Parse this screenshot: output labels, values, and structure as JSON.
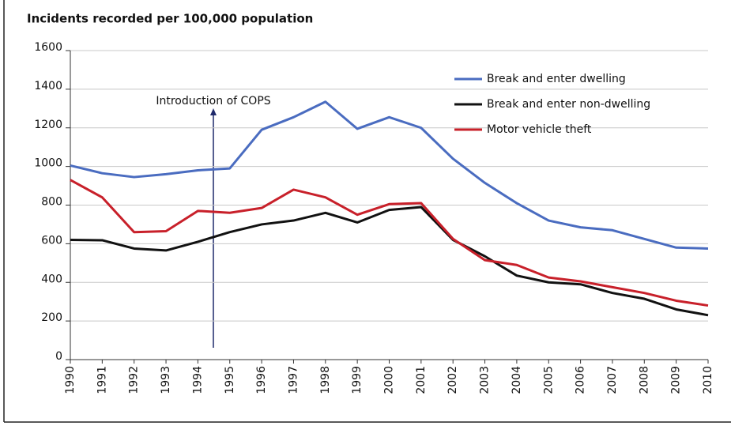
{
  "chart_data": {
    "type": "line",
    "title": "Incidents recorded per 100,000 population",
    "categories": [
      "1990",
      "1991",
      "1992",
      "1993",
      "1994",
      "1995",
      "1996",
      "1997",
      "1998",
      "1999",
      "2000",
      "2001",
      "2002",
      "2003",
      "2004",
      "2005",
      "2006",
      "2007",
      "2008",
      "2009",
      "2010"
    ],
    "series": [
      {
        "name": "Break and enter dwelling",
        "color": "#4a6cc0",
        "values": [
          1005,
          965,
          945,
          960,
          980,
          990,
          1190,
          1255,
          1335,
          1195,
          1255,
          1200,
          1040,
          915,
          810,
          720,
          685,
          670,
          625,
          580,
          575
        ]
      },
      {
        "name": "Break and enter non-dwelling",
        "color": "#111111",
        "values": [
          620,
          618,
          575,
          565,
          610,
          660,
          700,
          720,
          760,
          710,
          775,
          790,
          620,
          535,
          435,
          400,
          390,
          345,
          315,
          260,
          230
        ]
      },
      {
        "name": "Motor vehicle theft",
        "color": "#c8202a",
        "values": [
          930,
          840,
          660,
          665,
          770,
          760,
          785,
          880,
          840,
          750,
          805,
          810,
          625,
          515,
          490,
          425,
          405,
          375,
          345,
          305,
          280
        ]
      }
    ],
    "annotation": "Introduction of COPS",
    "ylim": [
      0,
      1600
    ],
    "yticks": [
      0,
      200,
      400,
      600,
      800,
      1000,
      1200,
      1400,
      1600
    ],
    "grid": true,
    "legend": "top-right"
  }
}
